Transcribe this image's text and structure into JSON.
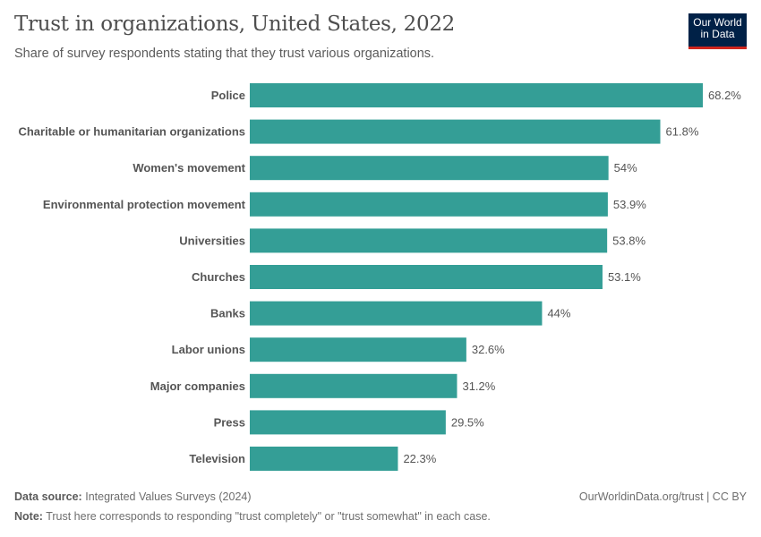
{
  "title": "Trust in organizations, United States, 2022",
  "subtitle": "Share of survey respondents stating that they trust various organizations.",
  "logo": {
    "line1": "Our World",
    "line2": "in Data"
  },
  "footer": {
    "source_label": "Data source:",
    "source": "Integrated Values Surveys (2024)",
    "url": "OurWorldinData.org/trust | CC BY",
    "note_label": "Note:",
    "note": "Trust here corresponds to responding \"trust completely\" or \"trust somewhat\" in each case."
  },
  "chart_data": {
    "type": "bar",
    "orientation": "horizontal",
    "unit": "%",
    "bar_color": "#349e96",
    "categories": [
      "Police",
      "Charitable or humanitarian organizations",
      "Women's movement",
      "Environmental protection movement",
      "Universities",
      "Churches",
      "Banks",
      "Labor unions",
      "Major companies",
      "Press",
      "Television"
    ],
    "values": [
      68.2,
      61.8,
      54,
      53.9,
      53.8,
      53.1,
      44,
      32.6,
      31.2,
      29.5,
      22.3
    ],
    "xlim": [
      0,
      68.2
    ]
  }
}
